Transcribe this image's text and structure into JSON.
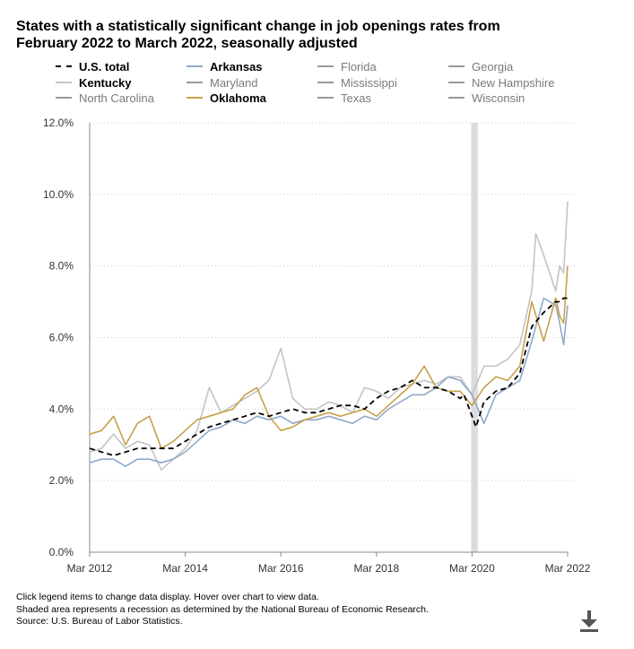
{
  "title": "States with a statistically significant change in job openings rates from February 2022 to March 2022, seasonally adjusted",
  "legend": [
    {
      "label": "U.S. total",
      "color": "#000000",
      "dashed": true,
      "active": true
    },
    {
      "label": "Arkansas",
      "color": "#8eaacb",
      "dashed": false,
      "active": true
    },
    {
      "label": "Florida",
      "color": "#999999",
      "dashed": false,
      "active": false
    },
    {
      "label": "Georgia",
      "color": "#999999",
      "dashed": false,
      "active": false
    },
    {
      "label": "Kentucky",
      "color": "#c4c4c4",
      "dashed": false,
      "active": true
    },
    {
      "label": "Maryland",
      "color": "#999999",
      "dashed": false,
      "active": false
    },
    {
      "label": "Mississippi",
      "color": "#999999",
      "dashed": false,
      "active": false
    },
    {
      "label": "New Hampshire",
      "color": "#999999",
      "dashed": false,
      "active": false
    },
    {
      "label": "North Carolina",
      "color": "#999999",
      "dashed": false,
      "active": false
    },
    {
      "label": "Oklahoma",
      "color": "#c9a04c",
      "dashed": false,
      "active": true
    },
    {
      "label": "Texas",
      "color": "#999999",
      "dashed": false,
      "active": false
    },
    {
      "label": "Wisconsin",
      "color": "#999999",
      "dashed": false,
      "active": false
    }
  ],
  "footer": {
    "line1": "Click legend items to change data display. Hover over chart to view data.",
    "line2": "Shaded area represents a recession as determined by the National Bureau of Economic Research.",
    "line3": "Source: U.S. Bureau of Labor Statistics."
  },
  "icons": {
    "download": "download-icon"
  },
  "chart_data": {
    "type": "line",
    "x_range": [
      "2012-03",
      "2022-03"
    ],
    "x_ticks": [
      "Mar 2012",
      "Mar 2014",
      "Mar 2016",
      "Mar 2018",
      "Mar 2020",
      "Mar 2022"
    ],
    "y_ticks": [
      "0.0%",
      "2.0%",
      "4.0%",
      "6.0%",
      "8.0%",
      "10.0%",
      "12.0%"
    ],
    "ylim": [
      0,
      12
    ],
    "grid": "horizontal dotted",
    "recession_shading": {
      "start": "2020-03",
      "end": "2020-04"
    },
    "series": [
      {
        "name": "U.S. total",
        "color": "#000000",
        "dashed": true,
        "points": [
          [
            "2012-03",
            2.9
          ],
          [
            "2012-06",
            2.8
          ],
          [
            "2012-09",
            2.7
          ],
          [
            "2012-12",
            2.8
          ],
          [
            "2013-03",
            2.9
          ],
          [
            "2013-06",
            2.9
          ],
          [
            "2013-09",
            2.9
          ],
          [
            "2013-12",
            2.9
          ],
          [
            "2014-03",
            3.1
          ],
          [
            "2014-06",
            3.3
          ],
          [
            "2014-09",
            3.5
          ],
          [
            "2014-12",
            3.6
          ],
          [
            "2015-03",
            3.7
          ],
          [
            "2015-06",
            3.8
          ],
          [
            "2015-09",
            3.9
          ],
          [
            "2015-12",
            3.8
          ],
          [
            "2016-03",
            3.9
          ],
          [
            "2016-06",
            4.0
          ],
          [
            "2016-09",
            3.9
          ],
          [
            "2016-12",
            3.9
          ],
          [
            "2017-03",
            4.0
          ],
          [
            "2017-06",
            4.1
          ],
          [
            "2017-09",
            4.1
          ],
          [
            "2017-12",
            4.0
          ],
          [
            "2018-03",
            4.3
          ],
          [
            "2018-06",
            4.5
          ],
          [
            "2018-09",
            4.6
          ],
          [
            "2018-12",
            4.8
          ],
          [
            "2019-03",
            4.6
          ],
          [
            "2019-06",
            4.6
          ],
          [
            "2019-09",
            4.5
          ],
          [
            "2019-12",
            4.3
          ],
          [
            "2020-01",
            4.4
          ],
          [
            "2020-03",
            3.8
          ],
          [
            "2020-04",
            3.5
          ],
          [
            "2020-06",
            4.2
          ],
          [
            "2020-09",
            4.5
          ],
          [
            "2020-12",
            4.6
          ],
          [
            "2021-03",
            5.0
          ],
          [
            "2021-06",
            6.3
          ],
          [
            "2021-09",
            6.7
          ],
          [
            "2021-12",
            7.0
          ],
          [
            "2022-01",
            7.0
          ],
          [
            "2022-02",
            7.1
          ],
          [
            "2022-03",
            7.1
          ]
        ]
      },
      {
        "name": "Arkansas",
        "color": "#8eaacb",
        "dashed": false,
        "points": [
          [
            "2012-03",
            2.5
          ],
          [
            "2012-06",
            2.6
          ],
          [
            "2012-09",
            2.6
          ],
          [
            "2012-12",
            2.4
          ],
          [
            "2013-03",
            2.6
          ],
          [
            "2013-06",
            2.6
          ],
          [
            "2013-09",
            2.5
          ],
          [
            "2013-12",
            2.6
          ],
          [
            "2014-03",
            2.8
          ],
          [
            "2014-06",
            3.1
          ],
          [
            "2014-09",
            3.4
          ],
          [
            "2014-12",
            3.5
          ],
          [
            "2015-03",
            3.7
          ],
          [
            "2015-06",
            3.6
          ],
          [
            "2015-09",
            3.8
          ],
          [
            "2015-12",
            3.7
          ],
          [
            "2016-03",
            3.8
          ],
          [
            "2016-06",
            3.6
          ],
          [
            "2016-09",
            3.7
          ],
          [
            "2016-12",
            3.7
          ],
          [
            "2017-03",
            3.8
          ],
          [
            "2017-06",
            3.7
          ],
          [
            "2017-09",
            3.6
          ],
          [
            "2017-12",
            3.8
          ],
          [
            "2018-03",
            3.7
          ],
          [
            "2018-06",
            4.0
          ],
          [
            "2018-09",
            4.2
          ],
          [
            "2018-12",
            4.4
          ],
          [
            "2019-03",
            4.4
          ],
          [
            "2019-06",
            4.6
          ],
          [
            "2019-09",
            4.9
          ],
          [
            "2019-12",
            4.8
          ],
          [
            "2020-03",
            4.4
          ],
          [
            "2020-06",
            3.6
          ],
          [
            "2020-09",
            4.4
          ],
          [
            "2020-12",
            4.6
          ],
          [
            "2021-03",
            4.8
          ],
          [
            "2021-06",
            5.9
          ],
          [
            "2021-09",
            7.1
          ],
          [
            "2021-12",
            6.9
          ],
          [
            "2022-01",
            6.4
          ],
          [
            "2022-02",
            5.8
          ],
          [
            "2022-03",
            6.9
          ]
        ]
      },
      {
        "name": "Kentucky",
        "color": "#c4c4c4",
        "dashed": false,
        "points": [
          [
            "2012-03",
            2.8
          ],
          [
            "2012-06",
            2.9
          ],
          [
            "2012-09",
            3.3
          ],
          [
            "2012-12",
            2.9
          ],
          [
            "2013-03",
            3.1
          ],
          [
            "2013-06",
            3.0
          ],
          [
            "2013-09",
            2.3
          ],
          [
            "2013-12",
            2.6
          ],
          [
            "2014-03",
            2.9
          ],
          [
            "2014-06",
            3.4
          ],
          [
            "2014-09",
            4.6
          ],
          [
            "2014-12",
            3.9
          ],
          [
            "2015-03",
            4.1
          ],
          [
            "2015-06",
            4.3
          ],
          [
            "2015-09",
            4.5
          ],
          [
            "2015-12",
            4.8
          ],
          [
            "2016-03",
            5.7
          ],
          [
            "2016-06",
            4.3
          ],
          [
            "2016-09",
            4.0
          ],
          [
            "2016-12",
            4.0
          ],
          [
            "2017-03",
            4.2
          ],
          [
            "2017-06",
            4.1
          ],
          [
            "2017-09",
            3.9
          ],
          [
            "2017-12",
            4.6
          ],
          [
            "2018-03",
            4.5
          ],
          [
            "2018-06",
            4.3
          ],
          [
            "2018-09",
            4.6
          ],
          [
            "2018-12",
            4.7
          ],
          [
            "2019-03",
            4.8
          ],
          [
            "2019-06",
            4.7
          ],
          [
            "2019-09",
            4.9
          ],
          [
            "2019-12",
            4.9
          ],
          [
            "2020-03",
            4.4
          ],
          [
            "2020-06",
            5.2
          ],
          [
            "2020-09",
            5.2
          ],
          [
            "2020-12",
            5.4
          ],
          [
            "2021-03",
            5.8
          ],
          [
            "2021-06",
            7.3
          ],
          [
            "2021-07",
            8.9
          ],
          [
            "2021-09",
            8.3
          ],
          [
            "2021-12",
            7.3
          ],
          [
            "2022-01",
            8.0
          ],
          [
            "2022-02",
            7.8
          ],
          [
            "2022-03",
            9.8
          ]
        ]
      },
      {
        "name": "Oklahoma",
        "color": "#c9a04c",
        "dashed": false,
        "points": [
          [
            "2012-03",
            3.3
          ],
          [
            "2012-06",
            3.4
          ],
          [
            "2012-09",
            3.8
          ],
          [
            "2012-12",
            3.0
          ],
          [
            "2013-03",
            3.6
          ],
          [
            "2013-06",
            3.8
          ],
          [
            "2013-09",
            2.9
          ],
          [
            "2013-12",
            3.1
          ],
          [
            "2014-03",
            3.4
          ],
          [
            "2014-06",
            3.7
          ],
          [
            "2014-09",
            3.8
          ],
          [
            "2014-12",
            3.9
          ],
          [
            "2015-03",
            4.0
          ],
          [
            "2015-06",
            4.4
          ],
          [
            "2015-09",
            4.6
          ],
          [
            "2015-12",
            3.8
          ],
          [
            "2016-03",
            3.4
          ],
          [
            "2016-06",
            3.5
          ],
          [
            "2016-09",
            3.7
          ],
          [
            "2016-12",
            3.8
          ],
          [
            "2017-03",
            3.9
          ],
          [
            "2017-06",
            3.8
          ],
          [
            "2017-09",
            3.9
          ],
          [
            "2017-12",
            4.0
          ],
          [
            "2018-03",
            3.8
          ],
          [
            "2018-06",
            4.1
          ],
          [
            "2018-09",
            4.4
          ],
          [
            "2018-12",
            4.7
          ],
          [
            "2019-03",
            5.2
          ],
          [
            "2019-06",
            4.6
          ],
          [
            "2019-09",
            4.5
          ],
          [
            "2019-12",
            4.5
          ],
          [
            "2020-03",
            4.1
          ],
          [
            "2020-06",
            4.6
          ],
          [
            "2020-09",
            4.9
          ],
          [
            "2020-12",
            4.8
          ],
          [
            "2021-03",
            5.2
          ],
          [
            "2021-06",
            7.0
          ],
          [
            "2021-09",
            5.9
          ],
          [
            "2021-12",
            7.1
          ],
          [
            "2022-01",
            6.6
          ],
          [
            "2022-02",
            6.4
          ],
          [
            "2022-03",
            8.0
          ]
        ]
      }
    ]
  }
}
